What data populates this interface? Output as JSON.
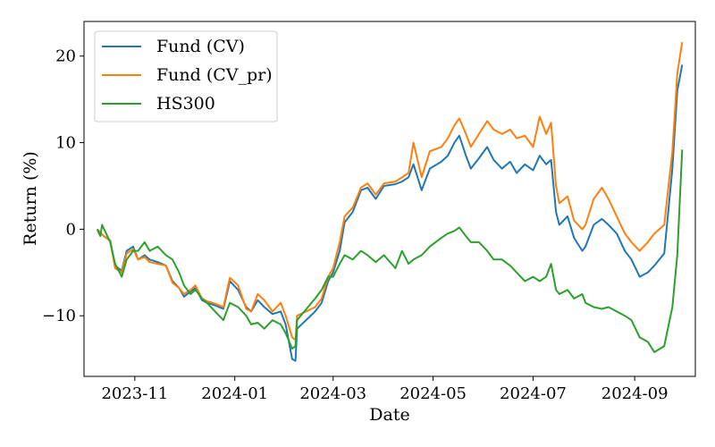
{
  "chart_data": {
    "type": "line",
    "xlabel": "Date",
    "ylabel": "Return (%)",
    "legend_placement": "top-left",
    "grid": false,
    "xlim": [
      "2023-10-01",
      "2024-10-08"
    ],
    "ylim": [
      -17,
      24
    ],
    "x_ticks": [
      "2023-11-01",
      "2024-01-01",
      "2024-03-01",
      "2024-05-01",
      "2024-07-01",
      "2024-09-01"
    ],
    "x_tick_labels": [
      "2023-11",
      "2024-01",
      "2024-03",
      "2024-05",
      "2024-07",
      "2024-09"
    ],
    "y_ticks": [
      -10,
      0,
      10,
      20
    ],
    "y_tick_labels": [
      "−10",
      "0",
      "10",
      "20"
    ],
    "series": [
      {
        "name": "Fund (CV)",
        "color": "#1f77b4",
        "points": [
          [
            "2023-10-09",
            0.0
          ],
          [
            "2023-10-13",
            -0.8
          ],
          [
            "2023-10-17",
            -1.3
          ],
          [
            "2023-10-20",
            -4.2
          ],
          [
            "2023-10-24",
            -4.8
          ],
          [
            "2023-10-27",
            -2.5
          ],
          [
            "2023-10-31",
            -2.0
          ],
          [
            "2023-11-03",
            -3.5
          ],
          [
            "2023-11-07",
            -3.0
          ],
          [
            "2023-11-10",
            -3.5
          ],
          [
            "2023-11-15",
            -3.8
          ],
          [
            "2023-11-20",
            -4.2
          ],
          [
            "2023-11-24",
            -6.0
          ],
          [
            "2023-11-28",
            -6.8
          ],
          [
            "2023-12-01",
            -7.8
          ],
          [
            "2023-12-05",
            -7.2
          ],
          [
            "2023-12-08",
            -6.8
          ],
          [
            "2023-12-12",
            -8.2
          ],
          [
            "2023-12-15",
            -8.5
          ],
          [
            "2023-12-20",
            -8.8
          ],
          [
            "2023-12-25",
            -9.2
          ],
          [
            "2023-12-29",
            -6.0
          ],
          [
            "2024-01-03",
            -7.0
          ],
          [
            "2024-01-08",
            -9.0
          ],
          [
            "2024-01-11",
            -9.5
          ],
          [
            "2024-01-15",
            -8.2
          ],
          [
            "2024-01-19",
            -9.0
          ],
          [
            "2024-01-24",
            -9.8
          ],
          [
            "2024-01-29",
            -9.5
          ],
          [
            "2024-02-01",
            -11.0
          ],
          [
            "2024-02-05",
            -15.0
          ],
          [
            "2024-02-07",
            -15.2
          ],
          [
            "2024-02-08",
            -11.5
          ],
          [
            "2024-02-19",
            -9.5
          ],
          [
            "2024-02-23",
            -8.5
          ],
          [
            "2024-02-27",
            -6.0
          ],
          [
            "2024-03-01",
            -5.0
          ],
          [
            "2024-03-05",
            -2.5
          ],
          [
            "2024-03-08",
            0.8
          ],
          [
            "2024-03-13",
            2.0
          ],
          [
            "2024-03-18",
            4.5
          ],
          [
            "2024-03-22",
            4.8
          ],
          [
            "2024-03-27",
            3.5
          ],
          [
            "2024-04-01",
            5.0
          ],
          [
            "2024-04-08",
            5.2
          ],
          [
            "2024-04-12",
            5.5
          ],
          [
            "2024-04-16",
            6.0
          ],
          [
            "2024-04-19",
            7.5
          ],
          [
            "2024-04-24",
            4.5
          ],
          [
            "2024-04-29",
            7.0
          ],
          [
            "2024-05-06",
            7.8
          ],
          [
            "2024-05-10",
            8.5
          ],
          [
            "2024-05-14",
            10.0
          ],
          [
            "2024-05-17",
            10.8
          ],
          [
            "2024-05-21",
            8.5
          ],
          [
            "2024-05-24",
            7.0
          ],
          [
            "2024-05-29",
            8.2
          ],
          [
            "2024-06-03",
            9.5
          ],
          [
            "2024-06-07",
            8.0
          ],
          [
            "2024-06-12",
            7.0
          ],
          [
            "2024-06-17",
            7.8
          ],
          [
            "2024-06-21",
            6.5
          ],
          [
            "2024-06-26",
            7.5
          ],
          [
            "2024-07-01",
            6.8
          ],
          [
            "2024-07-05",
            8.5
          ],
          [
            "2024-07-09",
            7.5
          ],
          [
            "2024-07-12",
            8.0
          ],
          [
            "2024-07-15",
            2.0
          ],
          [
            "2024-07-17",
            0.5
          ],
          [
            "2024-07-22",
            1.5
          ],
          [
            "2024-07-26",
            -1.0
          ],
          [
            "2024-07-31",
            -2.5
          ],
          [
            "2024-08-02",
            -2.0
          ],
          [
            "2024-08-07",
            0.5
          ],
          [
            "2024-08-12",
            1.2
          ],
          [
            "2024-08-16",
            0.5
          ],
          [
            "2024-08-21",
            -0.5
          ],
          [
            "2024-08-26",
            -2.5
          ],
          [
            "2024-08-30",
            -3.5
          ],
          [
            "2024-09-04",
            -5.5
          ],
          [
            "2024-09-09",
            -5.0
          ],
          [
            "2024-09-13",
            -4.2
          ],
          [
            "2024-09-19",
            -2.8
          ],
          [
            "2024-09-24",
            7.0
          ],
          [
            "2024-09-27",
            16.0
          ],
          [
            "2024-09-30",
            19.0
          ]
        ]
      },
      {
        "name": "Fund (CV_pr)",
        "color": "#ff7f0e",
        "points": [
          [
            "2023-10-09",
            0.0
          ],
          [
            "2023-10-13",
            -0.8
          ],
          [
            "2023-10-17",
            -1.3
          ],
          [
            "2023-10-20",
            -4.5
          ],
          [
            "2023-10-24",
            -5.0
          ],
          [
            "2023-10-27",
            -2.8
          ],
          [
            "2023-10-31",
            -2.3
          ],
          [
            "2023-11-03",
            -3.5
          ],
          [
            "2023-11-07",
            -3.2
          ],
          [
            "2023-11-10",
            -3.8
          ],
          [
            "2023-11-15",
            -4.0
          ],
          [
            "2023-11-20",
            -4.2
          ],
          [
            "2023-11-24",
            -6.2
          ],
          [
            "2023-11-28",
            -6.8
          ],
          [
            "2023-12-01",
            -7.5
          ],
          [
            "2023-12-05",
            -7.0
          ],
          [
            "2023-12-08",
            -6.5
          ],
          [
            "2023-12-12",
            -8.0
          ],
          [
            "2023-12-15",
            -8.3
          ],
          [
            "2023-12-20",
            -8.6
          ],
          [
            "2023-12-25",
            -9.0
          ],
          [
            "2023-12-29",
            -5.6
          ],
          [
            "2024-01-03",
            -6.5
          ],
          [
            "2024-01-08",
            -9.2
          ],
          [
            "2024-01-11",
            -9.5
          ],
          [
            "2024-01-15",
            -7.5
          ],
          [
            "2024-01-19",
            -8.2
          ],
          [
            "2024-01-24",
            -9.5
          ],
          [
            "2024-01-29",
            -8.5
          ],
          [
            "2024-02-01",
            -10.0
          ],
          [
            "2024-02-05",
            -12.5
          ],
          [
            "2024-02-07",
            -12.8
          ],
          [
            "2024-02-08",
            -10.0
          ],
          [
            "2024-02-19",
            -9.0
          ],
          [
            "2024-02-23",
            -8.0
          ],
          [
            "2024-02-27",
            -5.5
          ],
          [
            "2024-03-01",
            -4.5
          ],
          [
            "2024-03-05",
            -1.5
          ],
          [
            "2024-03-08",
            1.5
          ],
          [
            "2024-03-13",
            2.5
          ],
          [
            "2024-03-18",
            4.8
          ],
          [
            "2024-03-22",
            5.3
          ],
          [
            "2024-03-27",
            4.0
          ],
          [
            "2024-04-01",
            5.3
          ],
          [
            "2024-04-08",
            5.5
          ],
          [
            "2024-04-12",
            6.0
          ],
          [
            "2024-04-16",
            6.5
          ],
          [
            "2024-04-19",
            10.0
          ],
          [
            "2024-04-24",
            6.0
          ],
          [
            "2024-04-29",
            9.0
          ],
          [
            "2024-05-06",
            9.5
          ],
          [
            "2024-05-10",
            10.5
          ],
          [
            "2024-05-14",
            12.0
          ],
          [
            "2024-05-17",
            12.8
          ],
          [
            "2024-05-21",
            11.0
          ],
          [
            "2024-05-24",
            9.5
          ],
          [
            "2024-05-29",
            11.0
          ],
          [
            "2024-06-03",
            12.5
          ],
          [
            "2024-06-07",
            11.5
          ],
          [
            "2024-06-12",
            11.0
          ],
          [
            "2024-06-17",
            11.5
          ],
          [
            "2024-06-21",
            10.5
          ],
          [
            "2024-06-26",
            10.8
          ],
          [
            "2024-07-01",
            9.5
          ],
          [
            "2024-07-05",
            13.0
          ],
          [
            "2024-07-09",
            11.0
          ],
          [
            "2024-07-12",
            12.3
          ],
          [
            "2024-07-15",
            5.0
          ],
          [
            "2024-07-17",
            3.0
          ],
          [
            "2024-07-22",
            3.8
          ],
          [
            "2024-07-26",
            1.0
          ],
          [
            "2024-07-31",
            0.0
          ],
          [
            "2024-08-02",
            0.5
          ],
          [
            "2024-08-07",
            3.5
          ],
          [
            "2024-08-12",
            4.8
          ],
          [
            "2024-08-16",
            3.5
          ],
          [
            "2024-08-21",
            1.5
          ],
          [
            "2024-08-26",
            -0.5
          ],
          [
            "2024-08-30",
            -1.5
          ],
          [
            "2024-09-04",
            -2.5
          ],
          [
            "2024-09-09",
            -1.5
          ],
          [
            "2024-09-13",
            -0.5
          ],
          [
            "2024-09-19",
            0.5
          ],
          [
            "2024-09-24",
            9.0
          ],
          [
            "2024-09-27",
            18.0
          ],
          [
            "2024-09-30",
            21.6
          ]
        ]
      },
      {
        "name": "HS300",
        "color": "#2ca02c",
        "points": [
          [
            "2023-10-09",
            0.0
          ],
          [
            "2023-10-11",
            -0.8
          ],
          [
            "2023-10-12",
            0.5
          ],
          [
            "2023-10-17",
            -1.5
          ],
          [
            "2023-10-20",
            -4.0
          ],
          [
            "2023-10-24",
            -5.5
          ],
          [
            "2023-10-27",
            -3.5
          ],
          [
            "2023-10-31",
            -2.5
          ],
          [
            "2023-11-03",
            -2.5
          ],
          [
            "2023-11-07",
            -1.5
          ],
          [
            "2023-11-10",
            -2.5
          ],
          [
            "2023-11-15",
            -2.0
          ],
          [
            "2023-11-20",
            -3.0
          ],
          [
            "2023-11-24",
            -3.5
          ],
          [
            "2023-11-28",
            -5.0
          ],
          [
            "2023-12-01",
            -6.5
          ],
          [
            "2023-12-05",
            -7.5
          ],
          [
            "2023-12-08",
            -7.0
          ],
          [
            "2023-12-12",
            -8.0
          ],
          [
            "2023-12-15",
            -8.5
          ],
          [
            "2023-12-20",
            -9.5
          ],
          [
            "2023-12-25",
            -10.5
          ],
          [
            "2023-12-29",
            -8.5
          ],
          [
            "2024-01-03",
            -9.0
          ],
          [
            "2024-01-08",
            -10.0
          ],
          [
            "2024-01-11",
            -11.0
          ],
          [
            "2024-01-15",
            -10.8
          ],
          [
            "2024-01-19",
            -11.5
          ],
          [
            "2024-01-24",
            -10.5
          ],
          [
            "2024-01-29",
            -11.0
          ],
          [
            "2024-02-01",
            -12.0
          ],
          [
            "2024-02-05",
            -13.8
          ],
          [
            "2024-02-07",
            -13.5
          ],
          [
            "2024-02-08",
            -10.5
          ],
          [
            "2024-02-19",
            -8.0
          ],
          [
            "2024-02-23",
            -7.0
          ],
          [
            "2024-02-27",
            -5.5
          ],
          [
            "2024-03-01",
            -5.5
          ],
          [
            "2024-03-05",
            -4.0
          ],
          [
            "2024-03-08",
            -3.0
          ],
          [
            "2024-03-13",
            -3.5
          ],
          [
            "2024-03-18",
            -2.5
          ],
          [
            "2024-03-22",
            -3.0
          ],
          [
            "2024-03-27",
            -3.8
          ],
          [
            "2024-04-01",
            -3.0
          ],
          [
            "2024-04-08",
            -4.5
          ],
          [
            "2024-04-12",
            -2.5
          ],
          [
            "2024-04-16",
            -4.0
          ],
          [
            "2024-04-19",
            -3.5
          ],
          [
            "2024-04-24",
            -3.0
          ],
          [
            "2024-04-29",
            -2.0
          ],
          [
            "2024-05-06",
            -1.0
          ],
          [
            "2024-05-10",
            -0.5
          ],
          [
            "2024-05-14",
            -0.2
          ],
          [
            "2024-05-17",
            0.2
          ],
          [
            "2024-05-21",
            -0.8
          ],
          [
            "2024-05-24",
            -1.5
          ],
          [
            "2024-05-29",
            -1.5
          ],
          [
            "2024-06-03",
            -2.5
          ],
          [
            "2024-06-07",
            -3.5
          ],
          [
            "2024-06-12",
            -3.5
          ],
          [
            "2024-06-17",
            -4.2
          ],
          [
            "2024-06-21",
            -5.0
          ],
          [
            "2024-06-26",
            -6.0
          ],
          [
            "2024-07-01",
            -5.5
          ],
          [
            "2024-07-05",
            -6.0
          ],
          [
            "2024-07-09",
            -5.5
          ],
          [
            "2024-07-12",
            -4.0
          ],
          [
            "2024-07-15",
            -7.0
          ],
          [
            "2024-07-17",
            -7.5
          ],
          [
            "2024-07-22",
            -7.0
          ],
          [
            "2024-07-26",
            -8.0
          ],
          [
            "2024-07-31",
            -7.5
          ],
          [
            "2024-08-02",
            -8.5
          ],
          [
            "2024-08-07",
            -9.0
          ],
          [
            "2024-08-12",
            -9.2
          ],
          [
            "2024-08-16",
            -9.0
          ],
          [
            "2024-08-21",
            -9.5
          ],
          [
            "2024-08-26",
            -10.0
          ],
          [
            "2024-08-30",
            -10.5
          ],
          [
            "2024-09-04",
            -12.5
          ],
          [
            "2024-09-09",
            -13.0
          ],
          [
            "2024-09-13",
            -14.2
          ],
          [
            "2024-09-19",
            -13.5
          ],
          [
            "2024-09-24",
            -9.0
          ],
          [
            "2024-09-27",
            -3.0
          ],
          [
            "2024-09-30",
            9.2
          ]
        ]
      }
    ]
  }
}
